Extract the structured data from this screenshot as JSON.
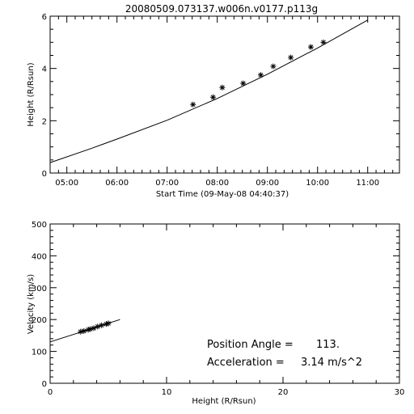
{
  "chart_data": [
    {
      "type": "scatter",
      "title": "20080509.073137.w006n.v0177.p113g",
      "xlabel": "Start Time (09-May-08 04:40:37)",
      "ylabel": "Height (R/Rsun)",
      "x_tick_labels": [
        "05:00",
        "06:00",
        "07:00",
        "08:00",
        "09:00",
        "10:00",
        "11:00"
      ],
      "y_tick_labels": [
        "0",
        "2",
        "4",
        "6"
      ],
      "xlim": [
        "04:40",
        "11:38"
      ],
      "ylim": [
        0,
        6
      ],
      "grid": false,
      "points": [
        {
          "x": "07:31",
          "y": 2.62
        },
        {
          "x": "07:55",
          "y": 2.9
        },
        {
          "x": "08:06",
          "y": 3.27
        },
        {
          "x": "08:31",
          "y": 3.43
        },
        {
          "x": "08:52",
          "y": 3.75
        },
        {
          "x": "09:07",
          "y": 4.08
        },
        {
          "x": "09:28",
          "y": 4.42
        },
        {
          "x": "09:52",
          "y": 4.82
        },
        {
          "x": "10:07",
          "y": 5.0
        }
      ],
      "fit_line": [
        {
          "x": "04:40",
          "y": 0.4
        },
        {
          "x": "05:30",
          "y": 0.95
        },
        {
          "x": "06:00",
          "y": 1.3
        },
        {
          "x": "07:00",
          "y": 2.02
        },
        {
          "x": "08:00",
          "y": 2.85
        },
        {
          "x": "09:00",
          "y": 3.78
        },
        {
          "x": "10:00",
          "y": 4.78
        },
        {
          "x": "11:00",
          "y": 5.85
        }
      ]
    },
    {
      "type": "scatter",
      "xlabel": "Height (R/Rsun)",
      "ylabel": "Velocity (km/s)",
      "x_tick_labels": [
        "0",
        "10",
        "20",
        "30"
      ],
      "y_tick_labels": [
        "0",
        "100",
        "200",
        "300",
        "400",
        "500"
      ],
      "xlim": [
        0,
        30
      ],
      "ylim": [
        0,
        500
      ],
      "grid": false,
      "points": [
        {
          "x": 2.62,
          "y": 162
        },
        {
          "x": 2.9,
          "y": 164
        },
        {
          "x": 3.27,
          "y": 168
        },
        {
          "x": 3.43,
          "y": 170
        },
        {
          "x": 3.75,
          "y": 173
        },
        {
          "x": 4.08,
          "y": 178
        },
        {
          "x": 4.42,
          "y": 182
        },
        {
          "x": 4.82,
          "y": 186
        },
        {
          "x": 5.0,
          "y": 188
        }
      ],
      "fit_line": [
        {
          "x": 0.0,
          "y": 130
        },
        {
          "x": 6.0,
          "y": 200
        }
      ],
      "annotations": {
        "pa_label": "Position Angle =",
        "pa_value": "113.",
        "acc_label": "Acceleration =",
        "acc_value": "3.14 m/s^2"
      }
    }
  ]
}
